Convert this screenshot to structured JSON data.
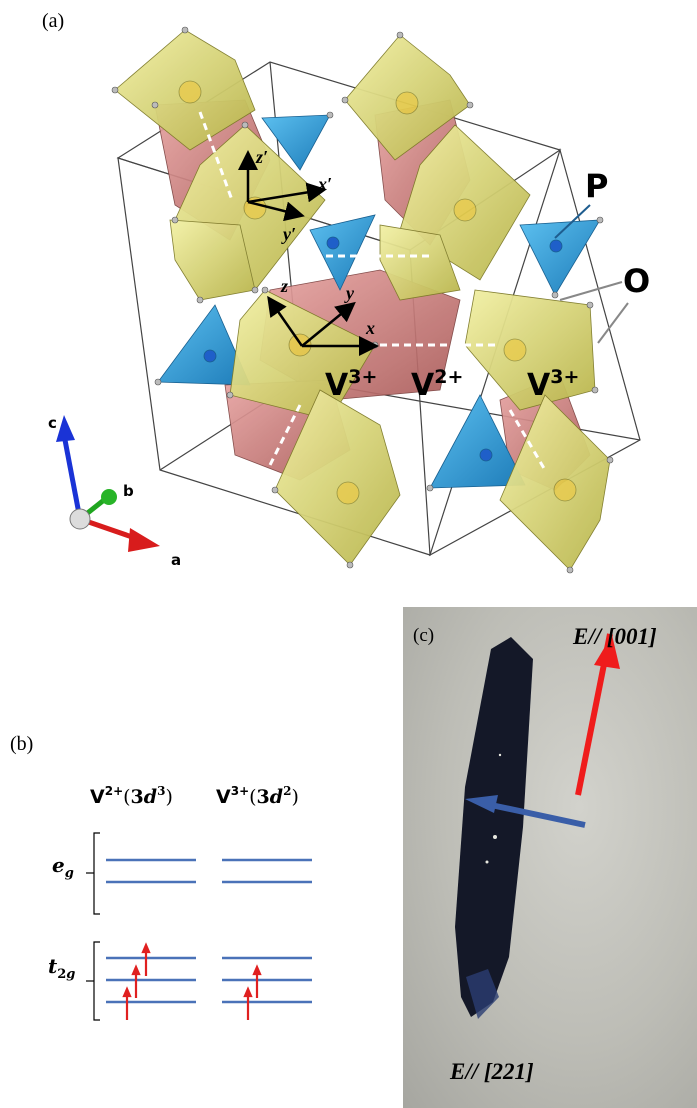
{
  "panel_a": {
    "label": "(a)",
    "atom_labels": {
      "P": "P",
      "O": "O"
    },
    "ion_labels": [
      "V3+",
      "V2+",
      "V3+"
    ],
    "local_axes_primed": [
      "z′",
      "x′",
      "y′"
    ],
    "local_axes": [
      "z",
      "y",
      "x"
    ],
    "crystal_axes": [
      "c",
      "b",
      "a"
    ],
    "colors": {
      "octahedron_yellow": "#d8d66a",
      "octahedron_red": "#c97a78",
      "tetrahedron_blue": "#2f9ad8"
    }
  },
  "panel_b": {
    "label": "(b)",
    "headers": [
      "V2+(3d3)",
      "V3+(3d2)"
    ],
    "levels": [
      "eg",
      "t2g"
    ],
    "electrons": {
      "V2+": 3,
      "V3+": 2
    },
    "colors": {
      "level": "#4a72b8",
      "spin": "#e02020"
    }
  },
  "panel_c": {
    "label": "(c)",
    "arrow_labels": [
      "E// [001]",
      "E// [221]"
    ],
    "colors": {
      "arrow_001": "#ef1c1c",
      "arrow_221": "#3a5ea8",
      "crystal": "#151a2c"
    }
  }
}
